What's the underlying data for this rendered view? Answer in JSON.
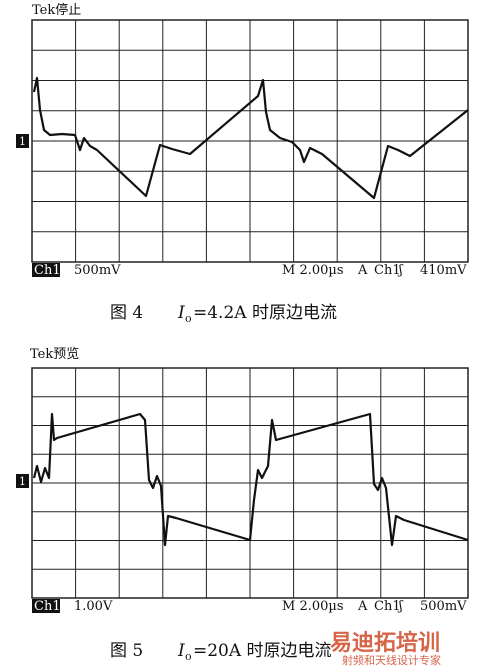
{
  "figures": [
    {
      "scope_title": "Tek停止",
      "channel": "Ch1",
      "scale": "500mV",
      "timebase": "M 2.00µs",
      "trigger_mode": "A",
      "trigger_channel": "Ch1",
      "trigger_slope": "ʃ",
      "trigger_level": "410mV",
      "marker": "1",
      "caption": {
        "number": "图 4",
        "variable": "I",
        "subscript": "o",
        "text": "=4.2A 时原边电流"
      }
    },
    {
      "scope_title": "Tek预览",
      "channel": "Ch1",
      "scale": "1.00V",
      "timebase": "M 2.00µs",
      "trigger_mode": "A",
      "trigger_channel": "Ch1",
      "trigger_slope": "ʃ",
      "trigger_level": "500mV",
      "marker": "1",
      "caption": {
        "number": "图 5",
        "variable": "I",
        "subscript": "o",
        "text": "=20A 时原边电流"
      }
    }
  ],
  "watermark": {
    "main": "易迪拓培训",
    "sub": "射频和天线设计专家"
  }
}
